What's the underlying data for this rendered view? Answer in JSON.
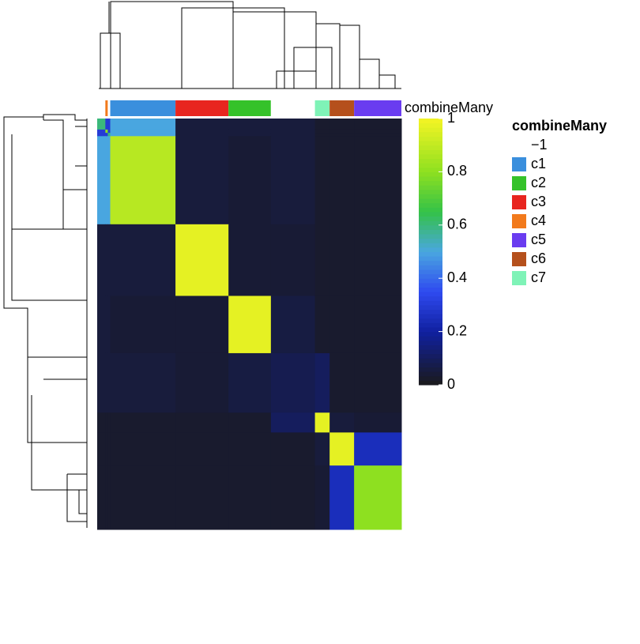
{
  "chart_data": {
    "type": "heatmap",
    "annotation_label": "combineMany",
    "legend_title": "combineMany",
    "legend_items": [
      {
        "label": "−1",
        "color": "#ffffff"
      },
      {
        "label": "c1",
        "color": "#3a8fdd"
      },
      {
        "label": "c2",
        "color": "#35c22a"
      },
      {
        "label": "c3",
        "color": "#e8251f"
      },
      {
        "label": "c4",
        "color": "#f27a1c"
      },
      {
        "label": "c5",
        "color": "#6a3cf0"
      },
      {
        "label": "c6",
        "color": "#b5501c"
      },
      {
        "label": "c7",
        "color": "#7ff3b7"
      }
    ],
    "groups": [
      {
        "cluster": "−1",
        "size": 10
      },
      {
        "cluster": "c4",
        "size": 3
      },
      {
        "cluster": "−1",
        "size": 3
      },
      {
        "cluster": "c1",
        "size": 80
      },
      {
        "cluster": "c3",
        "size": 65
      },
      {
        "cluster": "c2",
        "size": 52
      },
      {
        "cluster": "−1",
        "size": 54
      },
      {
        "cluster": "c7",
        "size": 18
      },
      {
        "cluster": "c6",
        "size": 30
      },
      {
        "cluster": "c5",
        "size": 58
      }
    ],
    "matrix": [
      [
        0.6,
        0.3,
        0.3,
        0.5,
        0.05,
        0.05,
        0.05,
        0.03,
        0.03,
        0.03
      ],
      [
        0.3,
        0.8,
        0.3,
        0.5,
        0.05,
        0.05,
        0.05,
        0.03,
        0.03,
        0.03
      ],
      [
        0.3,
        0.3,
        0.6,
        0.5,
        0.05,
        0.05,
        0.05,
        0.03,
        0.03,
        0.03
      ],
      [
        0.5,
        0.5,
        0.5,
        0.88,
        0.05,
        0.04,
        0.05,
        0.03,
        0.03,
        0.03
      ],
      [
        0.05,
        0.05,
        0.05,
        0.05,
        0.97,
        0.04,
        0.04,
        0.03,
        0.03,
        0.03
      ],
      [
        0.05,
        0.05,
        0.05,
        0.04,
        0.04,
        0.97,
        0.06,
        0.03,
        0.03,
        0.03
      ],
      [
        0.05,
        0.05,
        0.05,
        0.05,
        0.04,
        0.06,
        0.08,
        0.1,
        0.03,
        0.03
      ],
      [
        0.03,
        0.03,
        0.03,
        0.03,
        0.03,
        0.03,
        0.1,
        0.97,
        0.05,
        0.04
      ],
      [
        0.03,
        0.03,
        0.03,
        0.03,
        0.03,
        0.03,
        0.03,
        0.05,
        0.97,
        0.25
      ],
      [
        0.03,
        0.03,
        0.03,
        0.03,
        0.03,
        0.03,
        0.03,
        0.04,
        0.25,
        0.8
      ]
    ],
    "colorscale": [
      [
        0,
        "#1a1a1a"
      ],
      [
        0.2,
        "#1020a0"
      ],
      [
        0.35,
        "#2f4af0"
      ],
      [
        0.5,
        "#49a6e0"
      ],
      [
        0.65,
        "#34c248"
      ],
      [
        0.8,
        "#8ee020"
      ],
      [
        1,
        "#f4f424"
      ]
    ],
    "ylim": [
      0,
      1
    ],
    "yticks": [
      0,
      0.2,
      0.4,
      0.6,
      0.8,
      1
    ]
  }
}
